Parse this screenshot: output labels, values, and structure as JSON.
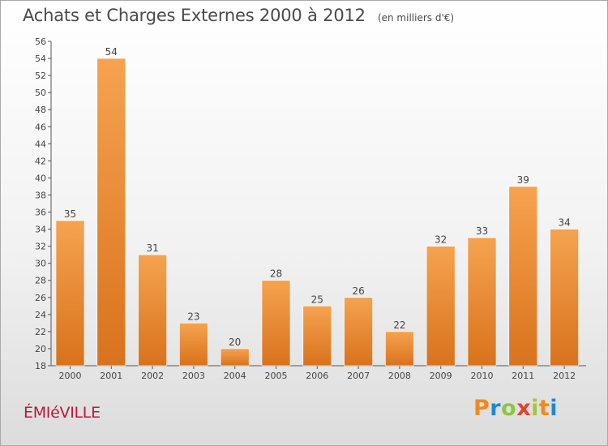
{
  "header": {
    "title": "Achats et Charges Externes 2000 à 2012",
    "subtitle": "(en milliers d'€)"
  },
  "footer": {
    "commune": "ÉMIéVILLE",
    "logo_letters": [
      "P",
      "r",
      "o",
      "x",
      "i",
      "t",
      "i"
    ],
    "logo_colors": [
      "#f08a1e",
      "#1e88d0",
      "#8cc63f",
      "#e3432b",
      "#a4c639",
      "#f08a1e",
      "#1e88d0"
    ]
  },
  "colors": {
    "bar_light": "#f5a350",
    "bar_dark": "#d9721c",
    "axis": "#555555",
    "grid": "#cccccc",
    "text": "#444444"
  },
  "chart_data": {
    "type": "bar",
    "categories": [
      "2000",
      "2001",
      "2002",
      "2003",
      "2004",
      "2005",
      "2006",
      "2007",
      "2008",
      "2009",
      "2010",
      "2011",
      "2012"
    ],
    "values": [
      35,
      54,
      31,
      23,
      20,
      28,
      25,
      26,
      22,
      32,
      33,
      39,
      34
    ],
    "ylim": [
      18,
      56
    ],
    "yticks": [
      18,
      20,
      22,
      24,
      26,
      28,
      30,
      32,
      34,
      36,
      38,
      40,
      42,
      44,
      46,
      48,
      50,
      52,
      54,
      56
    ],
    "xlabel": "",
    "ylabel": "",
    "grid": false,
    "data_labels": true
  }
}
